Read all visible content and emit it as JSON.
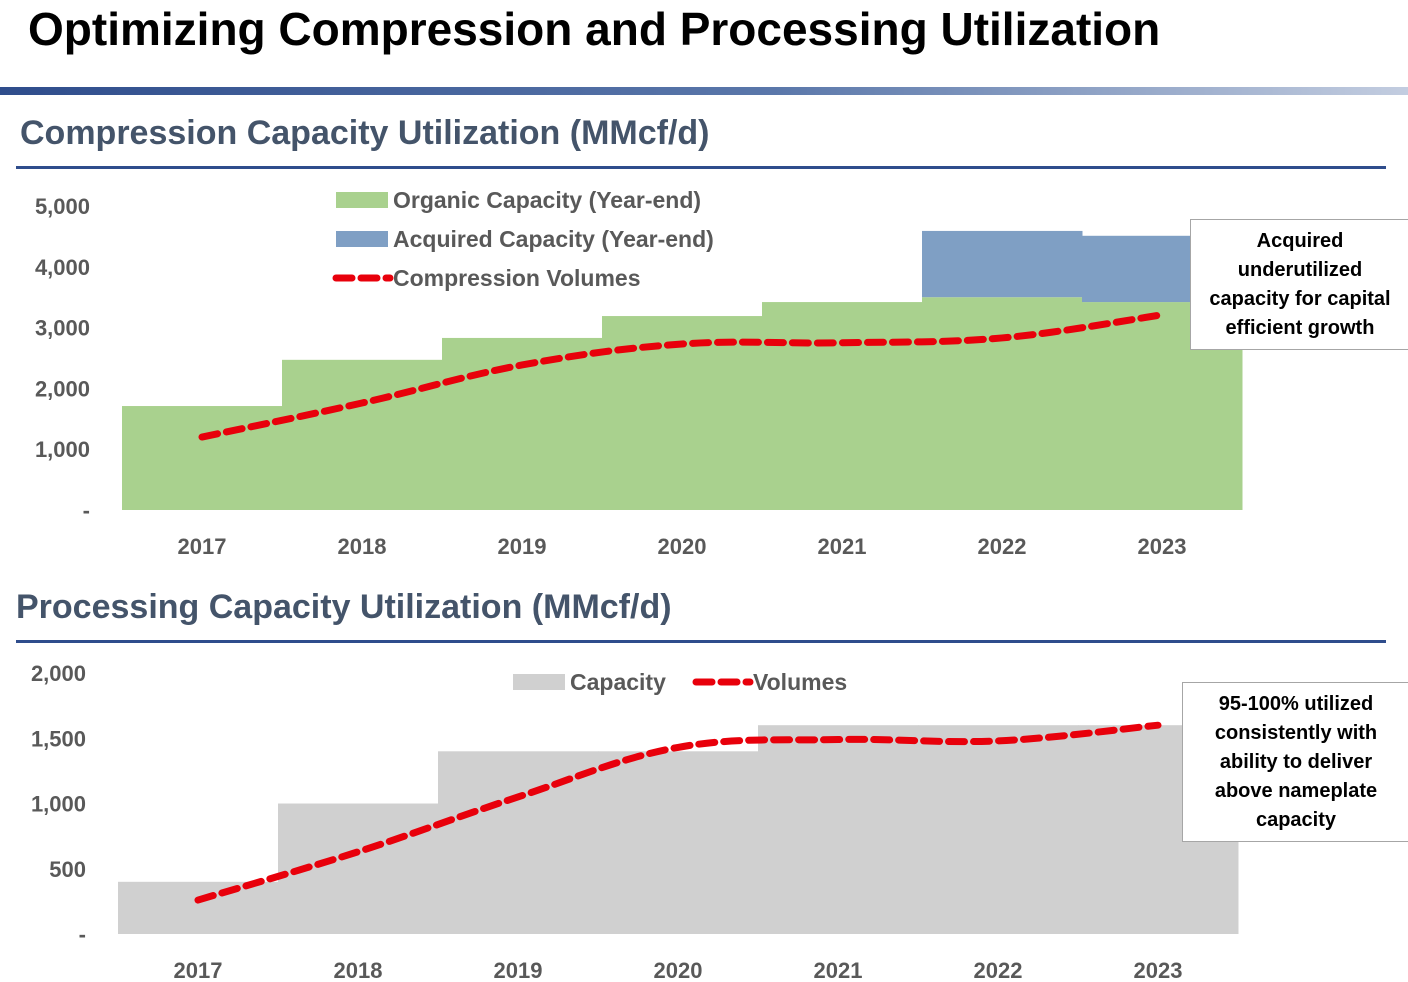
{
  "title": "Optimizing Compression and Processing Utilization",
  "colors": {
    "organic": "#a9d18e",
    "acquired": "#7f9fc4",
    "capacity": "#d0d0d0",
    "volumes": "#e8000b",
    "heading": "#44546a",
    "rule": "#2f4d8c"
  },
  "chart_data": [
    {
      "type": "area",
      "title": "Compression Capacity Utilization (MMcf/d)",
      "categories": [
        "2017",
        "2018",
        "2019",
        "2020",
        "2021",
        "2022",
        "2023"
      ],
      "yticks": [
        "-",
        "1,000",
        "2,000",
        "3,000",
        "4,000",
        "5,000"
      ],
      "ylim": [
        0,
        5000
      ],
      "legend_position": "top-center",
      "series": [
        {
          "name": "Organic Capacity (Year-end)",
          "kind": "step-area",
          "values": [
            1710,
            2470,
            2830,
            3190,
            3420,
            3500,
            3420
          ]
        },
        {
          "name": "Acquired Capacity (Year-end)",
          "kind": "step-area-stacked",
          "values": [
            0,
            0,
            0,
            0,
            0,
            1090,
            1090
          ]
        },
        {
          "name": "Compression Volumes",
          "kind": "dashed-line",
          "values": [
            1200,
            1760,
            2385,
            2730,
            2750,
            2830,
            3210
          ]
        }
      ],
      "annotation": "Acquired underutilized capacity for capital efficient growth"
    },
    {
      "type": "area",
      "title": "Processing Capacity Utilization (MMcf/d)",
      "categories": [
        "2017",
        "2018",
        "2019",
        "2020",
        "2021",
        "2022",
        "2023"
      ],
      "yticks": [
        "-",
        "500",
        "1,000",
        "1,500",
        "2,000"
      ],
      "ylim": [
        0,
        2000
      ],
      "legend_position": "top-center",
      "series": [
        {
          "name": "Capacity",
          "kind": "step-area",
          "values": [
            400,
            1000,
            1400,
            1400,
            1600,
            1600,
            1600
          ]
        },
        {
          "name": "Volumes",
          "kind": "dashed-line",
          "values": [
            260,
            630,
            1050,
            1430,
            1490,
            1480,
            1600
          ]
        }
      ],
      "annotation": "95-100% utilized consistently with ability to deliver above nameplate capacity"
    }
  ]
}
